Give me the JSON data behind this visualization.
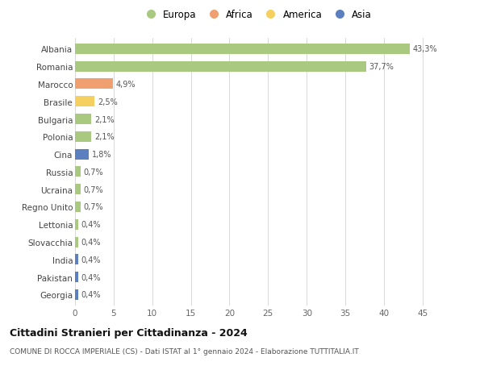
{
  "countries": [
    "Albania",
    "Romania",
    "Marocco",
    "Brasile",
    "Bulgaria",
    "Polonia",
    "Cina",
    "Russia",
    "Ucraina",
    "Regno Unito",
    "Lettonia",
    "Slovacchia",
    "India",
    "Pakistan",
    "Georgia"
  ],
  "values": [
    43.3,
    37.7,
    4.9,
    2.5,
    2.1,
    2.1,
    1.8,
    0.7,
    0.7,
    0.7,
    0.4,
    0.4,
    0.4,
    0.4,
    0.4
  ],
  "labels": [
    "43,3%",
    "37,7%",
    "4,9%",
    "2,5%",
    "2,1%",
    "2,1%",
    "1,8%",
    "0,7%",
    "0,7%",
    "0,7%",
    "0,4%",
    "0,4%",
    "0,4%",
    "0,4%",
    "0,4%"
  ],
  "colors": [
    "#a8c97f",
    "#a8c97f",
    "#f0a070",
    "#f5d060",
    "#a8c97f",
    "#a8c97f",
    "#5b7fbf",
    "#a8c97f",
    "#a8c97f",
    "#a8c97f",
    "#a8c97f",
    "#a8c97f",
    "#5b7fbf",
    "#5b7fbf",
    "#5b7fbf"
  ],
  "legend_labels": [
    "Europa",
    "Africa",
    "America",
    "Asia"
  ],
  "legend_colors": [
    "#a8c97f",
    "#f0a070",
    "#f5d060",
    "#5b7fbf"
  ],
  "title": "Cittadini Stranieri per Cittadinanza - 2024",
  "subtitle": "COMUNE DI ROCCA IMPERIALE (CS) - Dati ISTAT al 1° gennaio 2024 - Elaborazione TUTTITALIA.IT",
  "xlim": [
    0,
    47
  ],
  "xticks": [
    0,
    5,
    10,
    15,
    20,
    25,
    30,
    35,
    40,
    45
  ],
  "background_color": "#ffffff",
  "grid_color": "#d8d8d8"
}
